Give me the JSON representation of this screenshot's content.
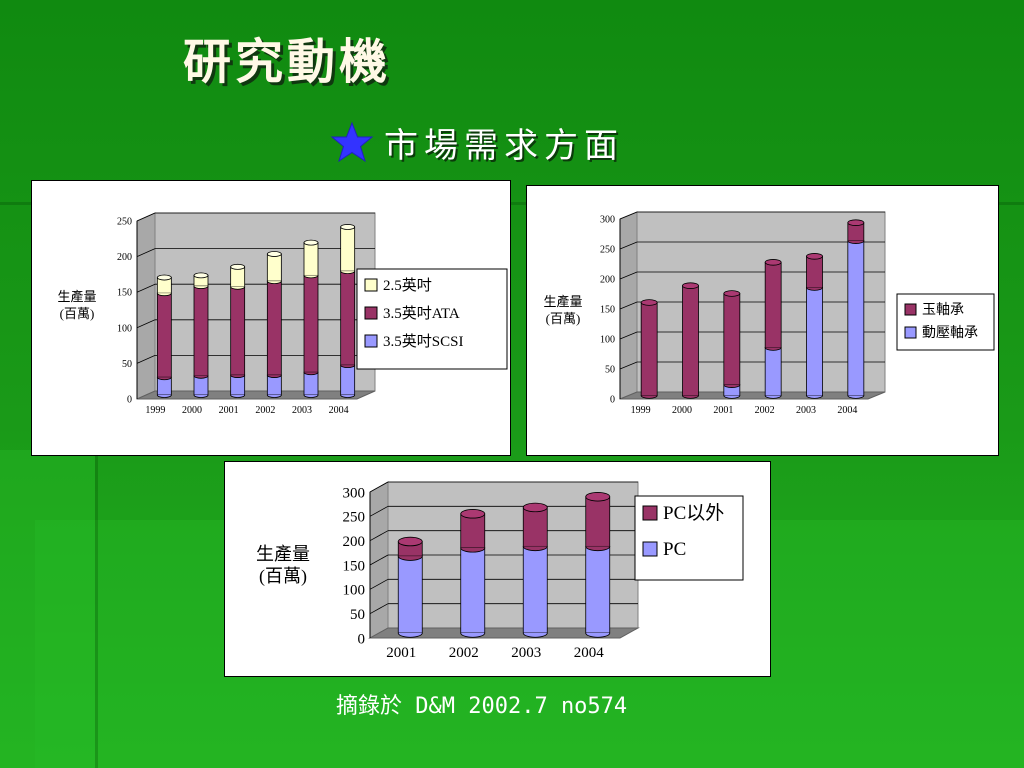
{
  "slide": {
    "title": "研究動機",
    "subtitle": "市場需求方面",
    "bullet_icon": "star-icon",
    "caption": "摘錄於 D&M 2002.7  no574",
    "colors": {
      "background": "#1a9a18",
      "title": "#fff9e6"
    }
  },
  "chart_data": [
    {
      "type": "bar",
      "stacked": true,
      "ylabel": "生產量\n(百萬)",
      "categories": [
        "1999",
        "2000",
        "2001",
        "2002",
        "2003",
        "2004"
      ],
      "ylim": [
        0,
        250
      ],
      "yticks": [
        0,
        50,
        100,
        150,
        200,
        250
      ],
      "series": [
        {
          "name": "3.5英吋SCSI",
          "color": "#9999ff",
          "values": [
            25,
            27,
            28,
            28,
            32,
            42
          ]
        },
        {
          "name": "3.5英吋ATA",
          "color": "#993366",
          "values": [
            118,
            126,
            124,
            132,
            136,
            132
          ]
        },
        {
          "name": "2.5英吋",
          "color": "#ffffcc",
          "values": [
            22,
            15,
            28,
            38,
            46,
            62
          ]
        }
      ],
      "legend": "right",
      "legend_order": [
        "2.5英吋",
        "3.5英吋ATA",
        "3.5英吋SCSI"
      ]
    },
    {
      "type": "bar",
      "stacked": true,
      "ylabel": "生產量\n(百萬)",
      "categories": [
        "1999",
        "2000",
        "2001",
        "2002",
        "2003",
        "2004"
      ],
      "ylim": [
        0,
        300
      ],
      "yticks": [
        0,
        50,
        100,
        150,
        200,
        250,
        300
      ],
      "series": [
        {
          "name": "動壓軸承",
          "color": "#9999ff",
          "values": [
            0,
            0,
            18,
            80,
            180,
            258
          ]
        },
        {
          "name": "玉軸承",
          "color": "#993366",
          "values": [
            155,
            183,
            152,
            142,
            52,
            30
          ]
        }
      ],
      "legend": "right",
      "legend_order": [
        "玉軸承",
        "動壓軸承"
      ]
    },
    {
      "type": "bar",
      "stacked": true,
      "ylabel": "生產量\n(百萬)",
      "categories": [
        "2001",
        "2002",
        "2003",
        "2004"
      ],
      "ylim": [
        0,
        300
      ],
      "yticks": [
        0,
        50,
        100,
        150,
        200,
        250,
        300
      ],
      "series": [
        {
          "name": "PC",
          "color": "#9999ff",
          "values": [
            158,
            175,
            178,
            178
          ]
        },
        {
          "name": "PC以外",
          "color": "#993366",
          "values": [
            30,
            70,
            80,
            102
          ]
        }
      ],
      "legend": "right",
      "legend_order": [
        "PC以外",
        "PC"
      ]
    }
  ]
}
